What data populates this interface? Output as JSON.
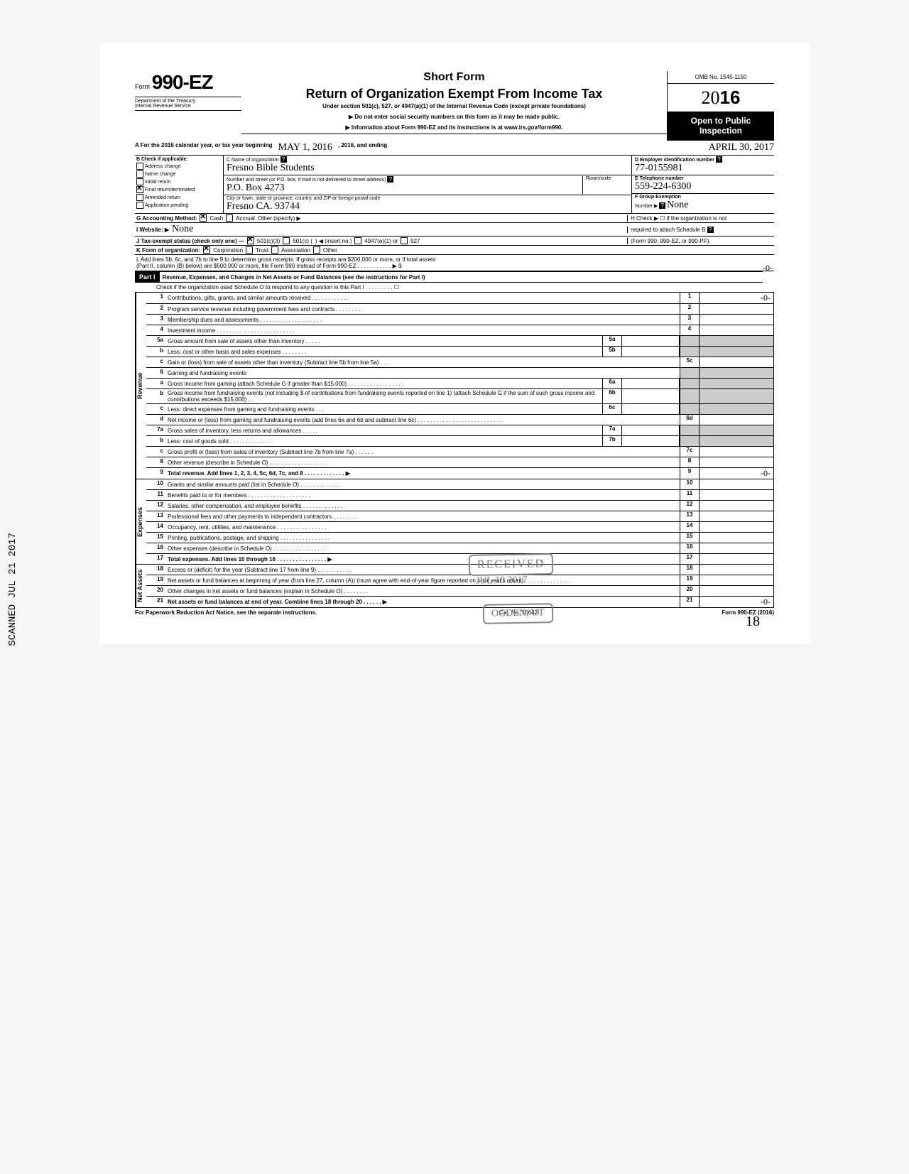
{
  "form": {
    "prefix": "Form",
    "number": "990-EZ",
    "short": "Short Form",
    "title": "Return of Organization Exempt From Income Tax",
    "subtitle": "Under section 501(c), 527, or 4947(a)(1) of the Internal Revenue Code (except private foundations)",
    "warn1": "▶ Do not enter social security numbers on this form as it may be made public.",
    "warn2": "▶ Information about Form 990-EZ and its instructions is at www.irs.gov/form990.",
    "dept1": "Department of the Treasury",
    "dept2": "Internal Revenue Service",
    "omb": "OMB No. 1545-1150",
    "year_prefix": "20",
    "year_bold": "16",
    "open": "Open to Public",
    "inspection": "Inspection"
  },
  "a": {
    "label": "A  For the 2016 calendar year, or tax year beginning",
    "begin": "MAY 1, 2016",
    "mid": ", 2016, and ending",
    "end": "APRIL 30, 2017"
  },
  "b": {
    "hdr": "B  Check if applicable:",
    "items": [
      "Address change",
      "Name change",
      "Initial return",
      "Final return/terminated",
      "Amended return",
      "Application pending"
    ],
    "checked_index": 3
  },
  "c": {
    "name_lbl": "C  Name of organization",
    "name": "Fresno Bible Students",
    "addr_lbl": "Number and street (or P.O. box, if mail is not delivered to street address)",
    "addr": "P.O. Box 4273",
    "room_lbl": "Room/suite",
    "city_lbl": "City or town, state or province, country, and ZIP or foreign postal code",
    "city": "Fresno CA. 93744"
  },
  "d": {
    "ein_lbl": "D Employer identification number",
    "ein": "77-0155981",
    "tel_lbl": "E Telephone number",
    "tel": "559-224-6300",
    "grp_lbl": "F Group Exemption",
    "grp_lbl2": "Number ▶",
    "grp": "None"
  },
  "g": {
    "lbl": "G  Accounting Method:",
    "cash": "Cash",
    "accrual": "Accrual",
    "other": "Other (specify) ▶"
  },
  "h": {
    "line1": "H  Check ▶ ☐ if the organization is not",
    "line2": "required to attach Schedule B",
    "line3": "(Form 990, 990-EZ, or 990-PF)."
  },
  "i": {
    "lbl": "I   Website: ▶",
    "val": "None"
  },
  "j": {
    "lbl": "J  Tax-exempt status (check only one) —",
    "a": "501(c)(3)",
    "b": "501(c) (",
    "c": ") ◀ (insert no.)",
    "d": "4947(a)(1) or",
    "e": "527"
  },
  "k": {
    "lbl": "K  Form of organization:",
    "corp": "Corporation",
    "trust": "Trust",
    "assoc": "Association",
    "other": "Other"
  },
  "l": {
    "line1": "L  Add lines 5b, 6c, and 7b to line 9 to determine gross receipts. If gross receipts are $200,000 or more, or if total assets",
    "line2": "(Part II, column (B) below) are $500,000 or more, file Form 990 instead of Form 990-EZ . . . . . . . . . . . ▶ $",
    "val": "-0-"
  },
  "part1": {
    "hdr": "Part I",
    "title": "Revenue, Expenses, and Changes in Net Assets or Fund Balances (see the instructions for Part I)",
    "check": "Check if the organization used Schedule O to respond to any question in this Part I . . . . . . . . . ☐"
  },
  "cats": {
    "rev": "Revenue",
    "exp": "Expenses",
    "net": "Net Assets"
  },
  "lines": [
    {
      "n": "1",
      "d": "Contributions, gifts, grants, and similar amounts received . . . . . . . . . . . .",
      "r": "1",
      "v": "-0-"
    },
    {
      "n": "2",
      "d": "Program service revenue including government fees and contracts . . . . . . . .",
      "r": "2",
      "v": ""
    },
    {
      "n": "3",
      "d": "Membership dues and assessments . . . . . . . . . . . . . . . . . . . .",
      "r": "3",
      "v": ""
    },
    {
      "n": "4",
      "d": "Investment income . . . . . . . . . . . . . . . . . . . . . . . . .",
      "r": "4",
      "v": ""
    },
    {
      "n": "5a",
      "d": "Gross amount from sale of assets other than inventory . . . . .",
      "ib": "5a"
    },
    {
      "n": "b",
      "d": "Less: cost or other basis and sales expenses . . . . . . . .",
      "ib": "5b"
    },
    {
      "n": "c",
      "d": "Gain or (loss) from sale of assets other than inventory (Subtract line 5b from line 5a) . . .",
      "r": "5c",
      "v": ""
    },
    {
      "n": "6",
      "d": "Gaming and fundraising events"
    },
    {
      "n": "a",
      "d": "Gross income from gaming (attach Schedule G if greater than $15,000) . . . . . . . . . . . . . . . . . .",
      "ib": "6a"
    },
    {
      "n": "b",
      "d": "Gross income from fundraising events (not including  $                       of contributions from fundraising events reported on line 1) (attach Schedule G if the sum of such gross income and contributions exceeds $15,000) . .",
      "ib": "6b"
    },
    {
      "n": "c",
      "d": "Less: direct expenses from gaming and fundraising events . . .",
      "ib": "6c"
    },
    {
      "n": "d",
      "d": "Net income or (loss) from gaming and fundraising events (add lines 6a and 6b and subtract line 6c) . . . . . . . . . . . . . . . . . . . . . . . . . . .",
      "r": "6d",
      "v": ""
    },
    {
      "n": "7a",
      "d": "Gross sales of inventory, less returns and allowances . . . . .",
      "ib": "7a"
    },
    {
      "n": "b",
      "d": "Less: cost of goods sold . . . . . . . . . . . . . .",
      "ib": "7b"
    },
    {
      "n": "c",
      "d": "Gross profit or (loss) from sales of inventory (Subtract line 7b from line 7a) . . . . . .",
      "r": "7c",
      "v": ""
    },
    {
      "n": "8",
      "d": "Other revenue (describe in Schedule O) . . . . . . . . . . . . . . . . . .",
      "r": "8",
      "v": ""
    },
    {
      "n": "9",
      "d": "Total revenue. Add lines 1, 2, 3, 4, 5c, 6d, 7c, and 8 . . . . . . . . . . . . . ▶",
      "r": "9",
      "v": "-0-",
      "bold": true
    },
    {
      "n": "10",
      "d": "Grants and similar amounts paid (list in Schedule O) . . . . . . . . . . . . .",
      "r": "10",
      "v": ""
    },
    {
      "n": "11",
      "d": "Benefits paid to or for members . . . . . . . . . . . . . . . . . . . .",
      "r": "11",
      "v": ""
    },
    {
      "n": "12",
      "d": "Salaries, other compensation, and employee benefits . . . . . . . . . . . . .",
      "r": "12",
      "v": ""
    },
    {
      "n": "13",
      "d": "Professional fees and other payments to independent contractors . . . . . . . .",
      "r": "13",
      "v": ""
    },
    {
      "n": "14",
      "d": "Occupancy, rent, utilities, and maintenance . . . . . . . . . . . . . . . .",
      "r": "14",
      "v": ""
    },
    {
      "n": "15",
      "d": "Printing, publications, postage, and shipping . . . . . . . . . . . . . . . .",
      "r": "15",
      "v": ""
    },
    {
      "n": "16",
      "d": "Other expenses (describe in Schedule O) . . . . . . . . . . . . . . . . .",
      "r": "16",
      "v": ""
    },
    {
      "n": "17",
      "d": "Total expenses. Add lines 10 through 16 . . . . . . . . . . . . . . . . ▶",
      "r": "17",
      "v": "",
      "bold": true
    },
    {
      "n": "18",
      "d": "Excess or (deficit) for the year (Subtract line 17 from line 9) . . . . . . . . . . .",
      "r": "18",
      "v": ""
    },
    {
      "n": "19",
      "d": "Net assets or fund balances at beginning of year (from line 27, column (A)) (must agree with end-of-year figure reported on prior year's return) . . . . . . . . . . . . . . .",
      "r": "19",
      "v": ""
    },
    {
      "n": "20",
      "d": "Other changes in net assets or fund balances (explain in Schedule O) . . . . . . . .",
      "r": "20",
      "v": ""
    },
    {
      "n": "21",
      "d": "Net assets or fund balances at end of year. Combine lines 18 through 20 . . . . . . ▶",
      "r": "21",
      "v": "-0-",
      "bold": true
    }
  ],
  "footer": {
    "l": "For Paperwork Reduction Act Notice, see the separate instructions.",
    "m": "Cat. No. 10642I",
    "r": "Form 990-EZ (2016)"
  },
  "stamps": {
    "received": "RECEIVED",
    "date": "JUL 10 2017",
    "ogden": "OGDEN, UT",
    "irs": "IRS-OSC"
  },
  "side": "SCANNED JUL 21 2017",
  "pagenum": "18",
  "colors": {
    "ink": "#000000",
    "hand": "#1a1a3a",
    "stamp": "#808080",
    "shade": "#cccccc"
  }
}
